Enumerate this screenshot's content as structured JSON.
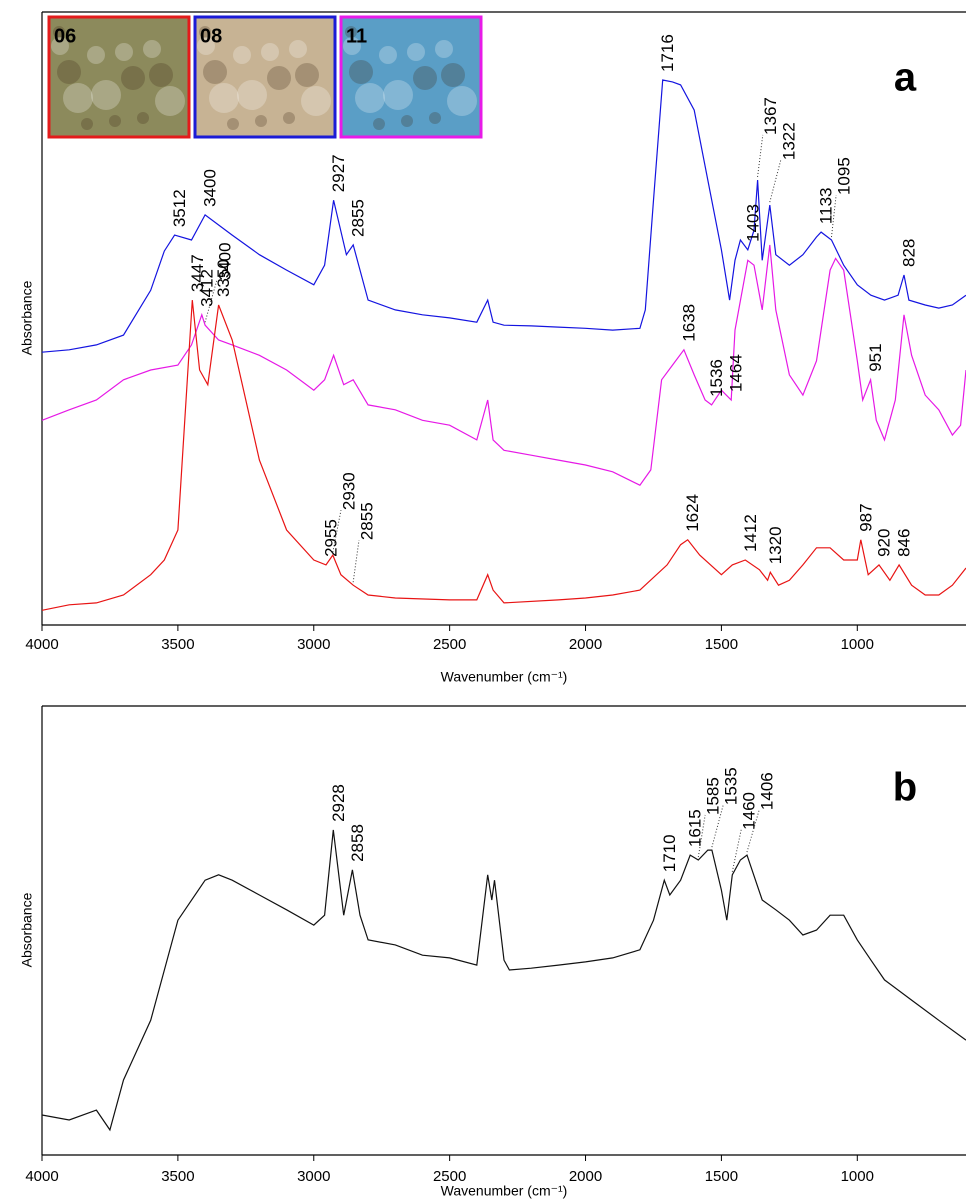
{
  "chart_data": [
    {
      "type": "line",
      "panel_label": "a",
      "xlabel": "Wavenumber (cm⁻¹)",
      "ylabel": "Absorbance",
      "xlim": [
        4000,
        600
      ],
      "xticks": [
        4000,
        3500,
        3000,
        2500,
        2000,
        1500,
        1000
      ],
      "ylim": [
        0,
        100
      ],
      "insets": [
        {
          "label": "06",
          "color": "#e31b1b",
          "fill": "#8c8a5c"
        },
        {
          "label": "08",
          "color": "#1b1bd6",
          "fill": "#c7b394"
        },
        {
          "label": "11",
          "color": "#e81be8",
          "fill": "#5a9ec6"
        }
      ],
      "series": [
        {
          "color": "#1414e0",
          "x": [
            4000,
            3900,
            3800,
            3700,
            3600,
            3550,
            3512,
            3450,
            3400,
            3300,
            3200,
            3100,
            3000,
            2960,
            2927,
            2880,
            2855,
            2800,
            2700,
            2600,
            2500,
            2400,
            2360,
            2340,
            2300,
            2200,
            2100,
            2000,
            1900,
            1800,
            1780,
            1750,
            1716,
            1680,
            1650,
            1600,
            1550,
            1500,
            1470,
            1450,
            1430,
            1403,
            1380,
            1367,
            1350,
            1322,
            1300,
            1250,
            1200,
            1150,
            1133,
            1095,
            1050,
            1000,
            950,
            900,
            850,
            828,
            810,
            750,
            700,
            650,
            600
          ],
          "values": [
            44.5,
            44.9,
            45.7,
            47.3,
            54.6,
            61,
            63.6,
            62.8,
            66.9,
            63.6,
            60.4,
            57.9,
            55.5,
            58.7,
            69.3,
            60.4,
            62,
            53,
            51.4,
            50.6,
            50.1,
            49.4,
            53,
            49.4,
            48.9,
            48.8,
            48.6,
            48.4,
            48.1,
            48.4,
            51.4,
            69.3,
            88.9,
            88.6,
            88.1,
            84,
            72.6,
            61.2,
            53,
            59.5,
            62.8,
            61.2,
            64.4,
            72.6,
            59.5,
            68.5,
            60.4,
            58.7,
            60.4,
            63.3,
            64.1,
            62.8,
            58.7,
            55.5,
            53.8,
            53,
            53.8,
            57.1,
            53,
            52.2,
            51.7,
            52.2,
            53.8
          ],
          "peaks": [
            3512,
            3400,
            2927,
            2855,
            1716,
            1403,
            1367,
            1322,
            1133,
            1095,
            828
          ]
        },
        {
          "color": "#e619e6",
          "x": [
            4000,
            3900,
            3800,
            3700,
            3600,
            3500,
            3450,
            3412,
            3400,
            3350,
            3300,
            3200,
            3100,
            3000,
            2960,
            2927,
            2890,
            2855,
            2800,
            2700,
            2600,
            2500,
            2400,
            2360,
            2340,
            2300,
            2200,
            2100,
            2000,
            1900,
            1800,
            1760,
            1720,
            1680,
            1638,
            1600,
            1560,
            1536,
            1500,
            1464,
            1450,
            1403,
            1380,
            1350,
            1322,
            1300,
            1250,
            1200,
            1150,
            1100,
            1080,
            1050,
            1000,
            980,
            951,
            930,
            900,
            860,
            828,
            800,
            750,
            700,
            650,
            620,
            600
          ],
          "values": [
            33.4,
            35.1,
            36.7,
            40,
            41.6,
            42.4,
            45.7,
            50.6,
            48.9,
            46.5,
            45.7,
            44,
            41.6,
            38.3,
            40,
            44,
            39.2,
            40,
            35.9,
            35.1,
            33.4,
            32.6,
            30.2,
            36.7,
            30.2,
            28.5,
            27.7,
            26.9,
            26.1,
            25,
            22.8,
            25.3,
            40,
            42.4,
            44.9,
            40.8,
            36.7,
            35.9,
            38.3,
            36.7,
            48.1,
            59.5,
            58.7,
            51.4,
            62,
            51.4,
            40.8,
            37.5,
            43.1,
            57.9,
            59.8,
            57.9,
            43.1,
            36.7,
            40,
            33.4,
            30.2,
            36.7,
            50.6,
            44,
            37.5,
            35.1,
            31,
            32.6,
            41.6
          ],
          "peaks": [
            3412,
            3400,
            1638,
            1536,
            1464,
            951
          ]
        },
        {
          "color": "#e81414",
          "x": [
            4000,
            3900,
            3800,
            3700,
            3600,
            3550,
            3500,
            3447,
            3420,
            3390,
            3350,
            3300,
            3250,
            3200,
            3100,
            3000,
            2955,
            2930,
            2900,
            2855,
            2800,
            2700,
            2500,
            2400,
            2360,
            2340,
            2300,
            2100,
            2000,
            1900,
            1800,
            1700,
            1650,
            1624,
            1580,
            1500,
            1460,
            1412,
            1360,
            1330,
            1320,
            1290,
            1250,
            1200,
            1150,
            1100,
            1050,
            1000,
            987,
            960,
            920,
            880,
            846,
            800,
            750,
            700,
            650,
            600
          ],
          "values": [
            2.4,
            3.3,
            3.6,
            4.9,
            8.2,
            10.6,
            15.5,
            53,
            41.6,
            39.2,
            52.2,
            46.5,
            36.7,
            26.9,
            15.5,
            10.6,
            9.8,
            11.4,
            8.2,
            6.5,
            4.9,
            4.4,
            4.1,
            4.1,
            8.2,
            5.7,
            3.6,
            4.1,
            4.4,
            4.9,
            5.7,
            9.8,
            13.1,
            13.9,
            11.4,
            8.2,
            9.8,
            10.6,
            9,
            7.3,
            8.6,
            6.5,
            7.3,
            9.8,
            12.6,
            12.6,
            10.6,
            10.6,
            13.9,
            8.2,
            9.8,
            7.3,
            9.8,
            6.5,
            4.9,
            4.9,
            6.5,
            9.3
          ],
          "peaks": [
            3447,
            3350,
            2955,
            2930,
            2855,
            1624,
            1412,
            1320,
            987,
            920,
            846
          ]
        }
      ]
    },
    {
      "type": "line",
      "panel_label": "b",
      "xlabel": "Wavenumber (cm⁻¹)",
      "ylabel": "Absorbance",
      "xlim": [
        4000,
        600
      ],
      "xticks": [
        4000,
        3500,
        3000,
        2500,
        2000,
        1500,
        1000
      ],
      "ylim": [
        0,
        100
      ],
      "series": [
        {
          "color": "#111111",
          "x": [
            4000,
            3900,
            3800,
            3750,
            3700,
            3600,
            3500,
            3400,
            3350,
            3300,
            3200,
            3100,
            3000,
            2960,
            2928,
            2890,
            2858,
            2830,
            2800,
            2700,
            2600,
            2500,
            2400,
            2360,
            2345,
            2335,
            2300,
            2280,
            2200,
            2100,
            2000,
            1900,
            1800,
            1750,
            1710,
            1690,
            1650,
            1615,
            1585,
            1550,
            1535,
            1500,
            1480,
            1460,
            1430,
            1406,
            1350,
            1300,
            1250,
            1200,
            1150,
            1100,
            1050,
            1000,
            950,
            900,
            800,
            700,
            600
          ],
          "values": [
            8.9,
            7.8,
            10,
            5.6,
            16.7,
            30,
            52.3,
            61.2,
            62.4,
            61.2,
            57.9,
            54.6,
            51.2,
            53.4,
            72.4,
            53.4,
            63.5,
            53.4,
            47.9,
            46.8,
            44.5,
            43.9,
            42.3,
            62.4,
            56.8,
            61.2,
            43.4,
            41.2,
            41.6,
            42.3,
            43,
            43.9,
            45.7,
            52.3,
            61.2,
            57.9,
            61.2,
            66.8,
            65.7,
            67.9,
            67.9,
            59,
            52.3,
            62.4,
            65.7,
            66.8,
            56.8,
            54.6,
            52.3,
            49,
            50.1,
            53.4,
            53.4,
            47.9,
            43.4,
            39,
            34.5,
            30,
            25.6
          ],
          "peaks": [
            2928,
            2858,
            1710,
            1615,
            1585,
            1535,
            1460,
            1406
          ]
        }
      ]
    }
  ]
}
